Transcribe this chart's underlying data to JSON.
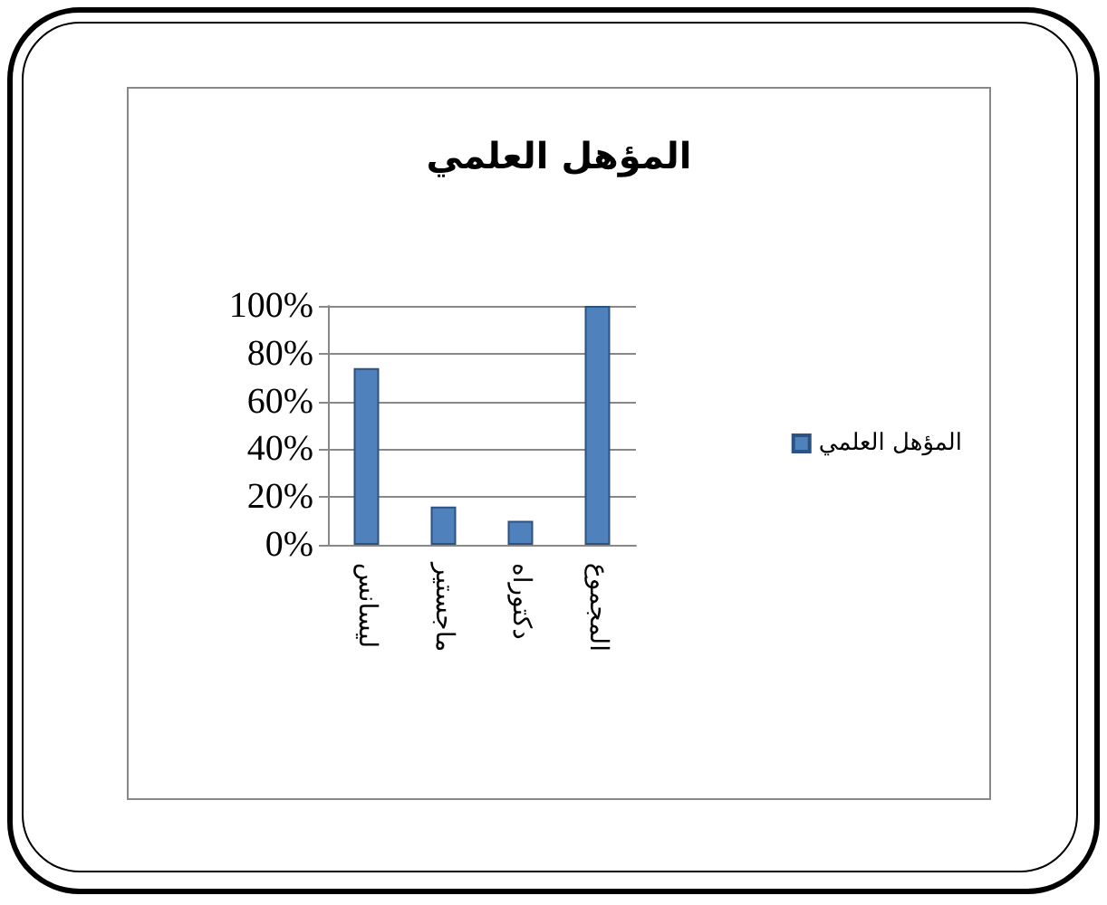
{
  "chart_data": {
    "type": "bar",
    "title": "المؤهل العلمي",
    "categories": [
      "ليسانس",
      "ماجستير",
      "دكتوراه",
      "المجموع"
    ],
    "series": [
      {
        "name": "المؤهل العلمي",
        "color": "#4f81bd",
        "values": [
          74,
          16,
          10,
          100
        ]
      }
    ],
    "ylim": [
      0,
      100
    ],
    "yticks": [
      {
        "value": 0,
        "label": "0%"
      },
      {
        "value": 20,
        "label": "20%"
      },
      {
        "value": 40,
        "label": "40%"
      },
      {
        "value": 60,
        "label": "60%"
      },
      {
        "value": 80,
        "label": "80%"
      },
      {
        "value": 100,
        "label": "100%"
      }
    ],
    "grid": "y",
    "legend": "right"
  }
}
